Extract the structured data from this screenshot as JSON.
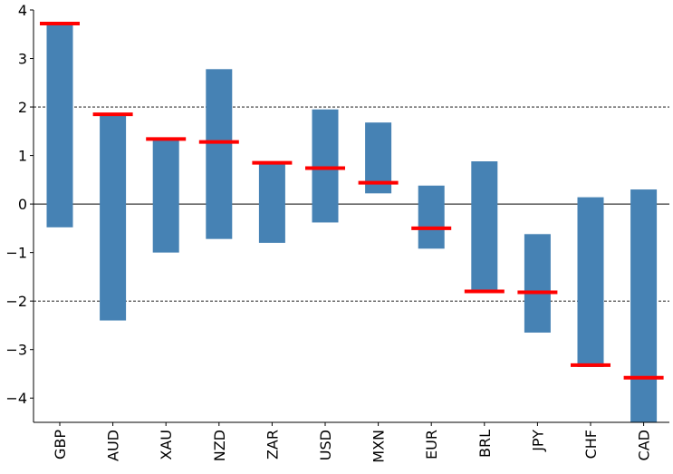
{
  "chart_data": {
    "type": "bar",
    "subtype": "floating-range-with-marker",
    "categories": [
      "GBP",
      "AUD",
      "XAU",
      "NZD",
      "ZAR",
      "USD",
      "MXN",
      "EUR",
      "BRL",
      "JPY",
      "CHF",
      "CAD"
    ],
    "series": [
      {
        "role": "range",
        "low": [
          -0.48,
          -2.4,
          -1.0,
          -0.72,
          -0.8,
          -0.38,
          0.22,
          -0.92,
          -1.8,
          -2.65,
          -3.36,
          -4.5
        ],
        "high": [
          3.7,
          1.85,
          1.32,
          2.78,
          0.85,
          1.95,
          1.68,
          0.38,
          0.88,
          -0.62,
          0.14,
          0.3
        ],
        "color": "#4682b4"
      },
      {
        "role": "marker",
        "values": [
          3.72,
          1.85,
          1.34,
          1.28,
          0.85,
          0.74,
          0.44,
          -0.5,
          -1.8,
          -1.82,
          -3.32,
          -3.58
        ],
        "color": "#ff0000"
      }
    ],
    "ylim": [
      -4.5,
      4
    ],
    "yticks": [
      "4",
      "3",
      "2",
      "1",
      "0",
      "−1",
      "−2",
      "−3",
      "−4"
    ],
    "ytick_values": [
      4,
      3,
      2,
      1,
      0,
      -1,
      -2,
      -3,
      -4
    ],
    "reference_lines": [
      {
        "y": 0,
        "style": "solid"
      },
      {
        "y": 2,
        "style": "dashed"
      },
      {
        "y": -2,
        "style": "dashed"
      }
    ],
    "grid": false,
    "title": "",
    "xlabel": "",
    "ylabel": ""
  }
}
